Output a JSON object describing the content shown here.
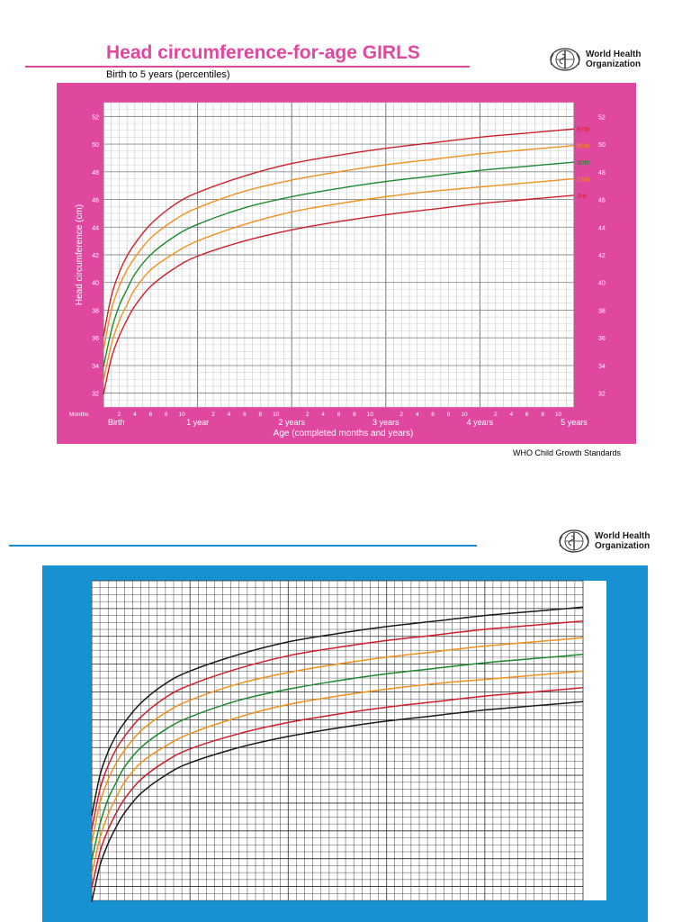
{
  "header": {
    "title": "Head circumference-for-age  GIRLS",
    "subtitle": "Birth to 5 years (percentiles)"
  },
  "logo": {
    "line1": "World Health",
    "line2": "Organization"
  },
  "footer": {
    "source": "WHO Child Growth Standards"
  },
  "colors": {
    "pink": "#e0489f",
    "blue": "#1891d3",
    "p97": "#cf1f2c",
    "p85": "#f0901e",
    "p50": "#1b8a2e",
    "p15": "#f0901e",
    "p3": "#cf1f2c",
    "black": "#1a1a1a"
  },
  "chart_data": [
    {
      "type": "line",
      "xlabel": "Age (completed months and years)",
      "ylabel": "Head circumference (cm)",
      "xlim": [
        0,
        60
      ],
      "ylim": [
        31,
        53
      ],
      "yticks": [
        32,
        34,
        36,
        38,
        40,
        42,
        44,
        46,
        48,
        50,
        52
      ],
      "xaxis_prefix": "Months",
      "month_ticks": [
        "2",
        "4",
        "6",
        "8",
        "10"
      ],
      "year_labels": [
        "Birth",
        "1 year",
        "2 years",
        "3 years",
        "4 years",
        "5 years"
      ],
      "x": [
        0,
        1,
        2,
        3,
        4,
        6,
        9,
        12,
        18,
        24,
        30,
        36,
        42,
        48,
        54,
        60
      ],
      "series": [
        {
          "name": "97th",
          "color": "p97",
          "values": [
            36.1,
            39.0,
            40.7,
            41.9,
            42.8,
            44.2,
            45.6,
            46.5,
            47.7,
            48.6,
            49.2,
            49.7,
            50.1,
            50.5,
            50.8,
            51.1
          ]
        },
        {
          "name": "85th",
          "color": "p85",
          "values": [
            35.1,
            38.0,
            39.7,
            40.9,
            41.8,
            43.2,
            44.5,
            45.4,
            46.6,
            47.4,
            48.0,
            48.5,
            48.9,
            49.3,
            49.6,
            49.9
          ]
        },
        {
          "name": "50th",
          "color": "p50",
          "values": [
            33.9,
            36.5,
            38.3,
            39.5,
            40.6,
            42.0,
            43.3,
            44.2,
            45.4,
            46.2,
            46.8,
            47.3,
            47.7,
            48.1,
            48.4,
            48.7
          ]
        },
        {
          "name": "15th",
          "color": "p15",
          "values": [
            32.9,
            35.5,
            37.2,
            38.4,
            39.5,
            40.9,
            42.1,
            43.0,
            44.2,
            45.1,
            45.7,
            46.2,
            46.6,
            46.9,
            47.2,
            47.5
          ]
        },
        {
          "name": "3rd",
          "color": "p3",
          "values": [
            31.9,
            34.5,
            36.1,
            37.3,
            38.3,
            39.7,
            41.0,
            41.9,
            43.0,
            43.8,
            44.4,
            44.9,
            45.3,
            45.7,
            46.0,
            46.3
          ]
        }
      ]
    },
    {
      "type": "line",
      "xlim": [
        0,
        60
      ],
      "ylim": [
        31,
        54
      ],
      "x": [
        0,
        1,
        2,
        3,
        4,
        6,
        9,
        12,
        18,
        24,
        30,
        36,
        42,
        48,
        54,
        60
      ],
      "series": [
        {
          "color": "black",
          "values": [
            37.1,
            40.0,
            41.7,
            42.9,
            43.8,
            45.2,
            46.6,
            47.5,
            48.7,
            49.6,
            50.2,
            50.7,
            51.1,
            51.5,
            51.8,
            52.1
          ]
        },
        {
          "color": "p97",
          "values": [
            36.1,
            39.0,
            40.7,
            41.9,
            42.8,
            44.2,
            45.6,
            46.5,
            47.7,
            48.6,
            49.2,
            49.7,
            50.1,
            50.5,
            50.8,
            51.1
          ]
        },
        {
          "color": "p85",
          "values": [
            35.1,
            38.0,
            39.7,
            40.9,
            41.8,
            43.2,
            44.5,
            45.4,
            46.6,
            47.4,
            48.0,
            48.5,
            48.9,
            49.3,
            49.6,
            49.9
          ]
        },
        {
          "color": "p50",
          "values": [
            33.9,
            36.5,
            38.3,
            39.5,
            40.6,
            42.0,
            43.3,
            44.2,
            45.4,
            46.2,
            46.8,
            47.3,
            47.7,
            48.1,
            48.4,
            48.7
          ]
        },
        {
          "color": "p15",
          "values": [
            32.9,
            35.5,
            37.2,
            38.4,
            39.5,
            40.9,
            42.1,
            43.0,
            44.2,
            45.1,
            45.7,
            46.2,
            46.6,
            46.9,
            47.2,
            47.5
          ]
        },
        {
          "color": "p3",
          "values": [
            31.9,
            34.5,
            36.1,
            37.3,
            38.3,
            39.7,
            41.0,
            41.9,
            43.0,
            43.8,
            44.4,
            44.9,
            45.3,
            45.7,
            46.0,
            46.3
          ]
        },
        {
          "color": "black",
          "values": [
            30.9,
            33.5,
            35.1,
            36.3,
            37.3,
            38.7,
            40.0,
            40.9,
            42.0,
            42.8,
            43.4,
            43.9,
            44.3,
            44.7,
            45.0,
            45.3
          ]
        }
      ]
    }
  ]
}
